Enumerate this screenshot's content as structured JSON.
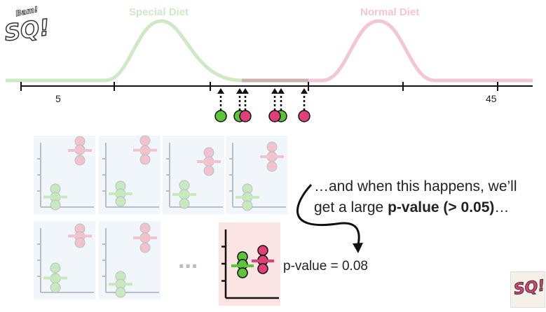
{
  "curves": {
    "special_label": "Special Diet",
    "normal_label": "Normal Diet",
    "colors": {
      "special": "#cfe9c6",
      "normal": "#f3c6d3",
      "overlap": "#c9b3ad"
    }
  },
  "axis": {
    "tick_labels": [
      "5",
      "45"
    ]
  },
  "samples": {
    "colors": {
      "green": "#5cc43a",
      "pink": "#e0407a"
    }
  },
  "mini_plots": {
    "colors": {
      "bg": "#f1f6fb",
      "axis": "#b9bec4",
      "green": "#c7e9bd",
      "pink": "#f2c2cf",
      "highlight_bg": "#fbe4e4",
      "highlight_axis": "#111111",
      "highlight_green": "#5cc43a",
      "highlight_pink": "#e0407a"
    },
    "ellipsis": "..."
  },
  "caption": {
    "line1": "…and when this happens, we’ll",
    "line2_prefix": "get a large ",
    "line2_bold": "p-value (> 0.05)",
    "line2_suffix": "…"
  },
  "p_value_label": "p-value = 0.08",
  "logo": {
    "text": "SQ!",
    "small_text": "Bam!"
  }
}
